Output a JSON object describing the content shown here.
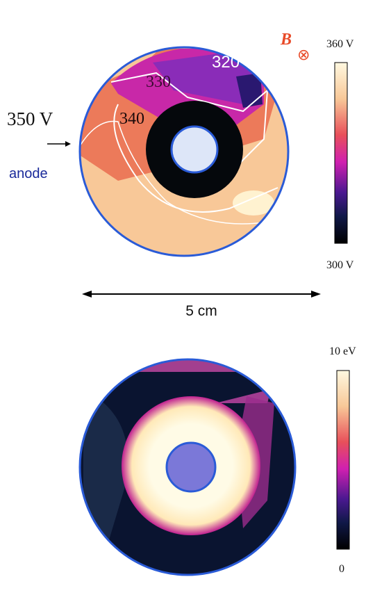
{
  "panels": [
    {
      "colorbar": {
        "max": "360 V",
        "min": "300 V"
      },
      "field": "B",
      "field_symbol": "⊗",
      "contours": [
        "320",
        "330",
        "340"
      ],
      "anode_potential": "350 V",
      "anode": "anode",
      "scale": "5 cm"
    },
    {
      "colorbar": {
        "max": "10 eV",
        "min": "0"
      }
    }
  ]
}
